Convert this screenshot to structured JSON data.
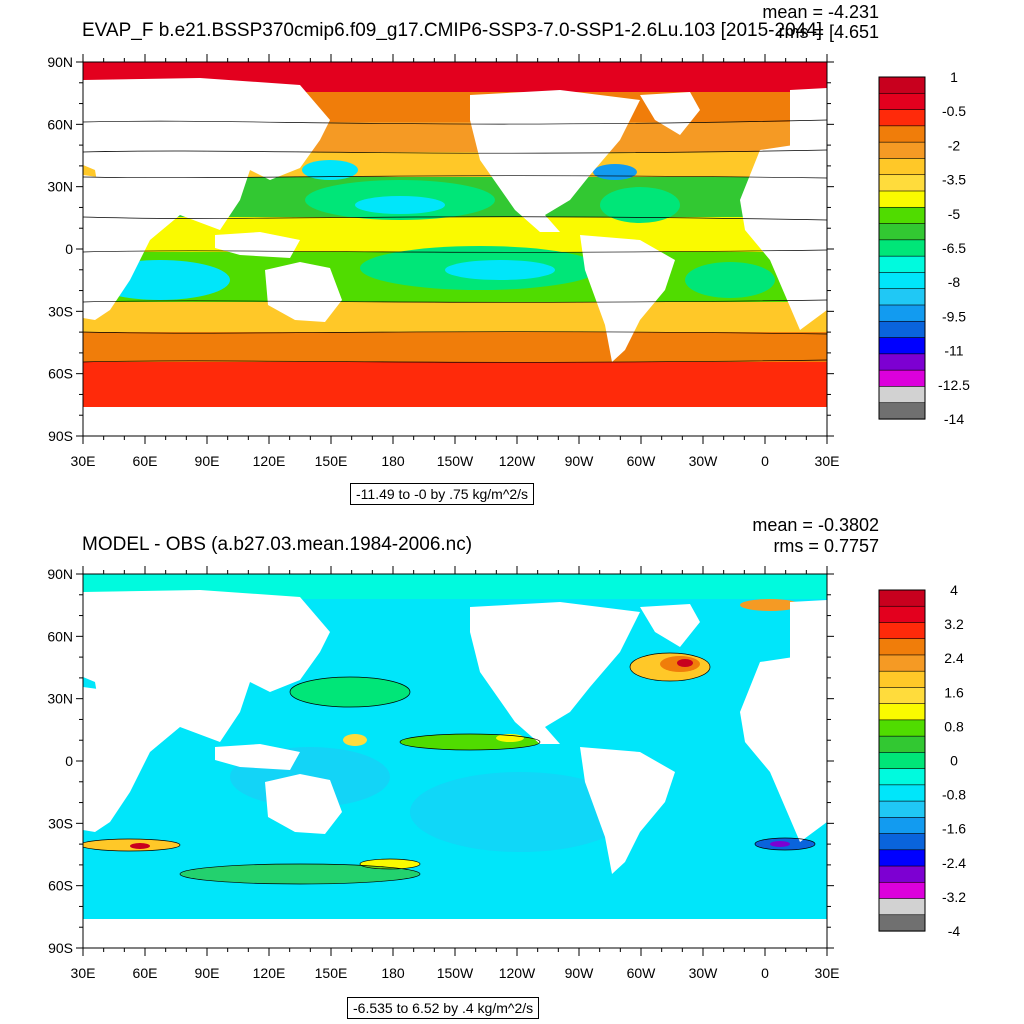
{
  "chart_data": [
    {
      "type": "heatmap",
      "title": "EVAP_F b.e21.BSSP370cmip6.f09_g17.CMIP6-SSP3-7.0-SSP1-2.6Lu.103 [2015-2044]",
      "stat_mean": "mean = -4.231",
      "stat_rms": "rms = [4.651",
      "range_label": "-11.49 to -0 by .75 kg/m^2/s",
      "y_ticks": [
        "90N",
        "60N",
        "30N",
        "0",
        "30S",
        "60S",
        "90S"
      ],
      "x_ticks": [
        "30E",
        "60E",
        "90E",
        "120E",
        "150E",
        "180",
        "150W",
        "120W",
        "90W",
        "60W",
        "30W",
        "0",
        "30E"
      ],
      "colorbar_labels": [
        "1",
        "-0.5",
        "-2",
        "-3.5",
        "-5",
        "-6.5",
        "-8",
        "-9.5",
        "-11",
        "-12.5",
        "-14"
      ],
      "colorbar_colors": [
        "#c8001e",
        "#e3001e",
        "#ff2a0a",
        "#f07d0a",
        "#f59a24",
        "#ffc828",
        "#ffdc3c",
        "#fafa00",
        "#50dc00",
        "#32c832",
        "#00e678",
        "#00fade",
        "#00e6fa",
        "#20c8f5",
        "#129bf0",
        "#0a64dc",
        "#0000ff",
        "#7d00d2",
        "#dc00dc",
        "#d2d2d2",
        "#707070"
      ],
      "legend_position": "right"
    },
    {
      "type": "heatmap",
      "title": "MODEL - OBS (a.b27.03.mean.1984-2006.nc)",
      "stat_mean": "mean = -0.3802",
      "stat_rms": "rms = 0.7757",
      "range_label": "-6.535 to 6.52 by .4 kg/m^2/s",
      "y_ticks": [
        "90N",
        "60N",
        "30N",
        "0",
        "30S",
        "60S",
        "90S"
      ],
      "x_ticks": [
        "30E",
        "60E",
        "90E",
        "120E",
        "150E",
        "180",
        "150W",
        "120W",
        "90W",
        "60W",
        "30W",
        "0",
        "30E"
      ],
      "colorbar_labels": [
        "4",
        "3.2",
        "2.4",
        "1.6",
        "0.8",
        "0",
        "-0.8",
        "-1.6",
        "-2.4",
        "-3.2",
        "-4"
      ],
      "colorbar_colors": [
        "#c8001e",
        "#e3001e",
        "#ff2a0a",
        "#f07d0a",
        "#f59a24",
        "#ffc828",
        "#ffdc3c",
        "#fafa00",
        "#50dc00",
        "#32c832",
        "#00e678",
        "#00fade",
        "#00e6fa",
        "#20c8f5",
        "#129bf0",
        "#0a64dc",
        "#0000ff",
        "#7d00d2",
        "#dc00dc",
        "#d2d2d2",
        "#707070"
      ],
      "legend_position": "right"
    }
  ]
}
